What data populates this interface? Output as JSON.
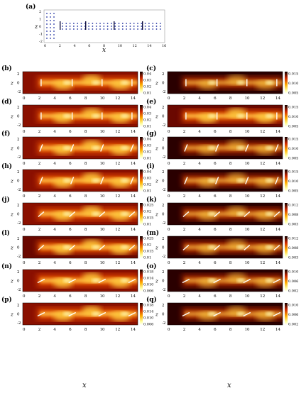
{
  "panel_a": {
    "label": "(a)",
    "xlabel": "x",
    "ylabel": "z",
    "x_ticks": [
      "0",
      "2",
      "4",
      "6",
      "8",
      "10",
      "12",
      "14",
      "16"
    ],
    "y_ticks": [
      "2",
      "1",
      "0",
      "-1",
      "-2"
    ]
  },
  "panels": [
    {
      "label": "(b)",
      "colorbar": [
        "0.04",
        "0.03",
        "0.02",
        "0.01"
      ],
      "scheme": "bright",
      "vanes": "vertical"
    },
    {
      "label": "(c)",
      "colorbar": [
        "0.015",
        "0.010",
        "0.005"
      ],
      "scheme": "dark",
      "vanes": "vertical"
    },
    {
      "label": "(d)",
      "colorbar": [
        "0.04",
        "0.03",
        "0.02",
        "0.01"
      ],
      "scheme": "bright",
      "vanes": "vertical"
    },
    {
      "label": "(e)",
      "colorbar": [
        "0.015",
        "0.010",
        "0.005"
      ],
      "scheme": "mid",
      "vanes": "vertical"
    },
    {
      "label": "(f)",
      "colorbar": [
        "0.04",
        "0.03",
        "0.02",
        "0.01"
      ],
      "scheme": "bright",
      "vanes": "tilt"
    },
    {
      "label": "(g)",
      "colorbar": [
        "0.015",
        "0.010",
        "0.005"
      ],
      "scheme": "dark",
      "vanes": "tilt"
    },
    {
      "label": "(h)",
      "colorbar": [
        "0.04",
        "0.03",
        "0.02",
        "0.01"
      ],
      "scheme": "bright",
      "vanes": "tilt"
    },
    {
      "label": "(i)",
      "colorbar": [
        "0.015",
        "0.010",
        "0.005"
      ],
      "scheme": "dark",
      "vanes": "tilt"
    },
    {
      "label": "(j)",
      "colorbar": [
        "0.025",
        "0.02",
        "0.015",
        "0.01"
      ],
      "scheme": "bright",
      "vanes": "diag"
    },
    {
      "label": "(k)",
      "colorbar": [
        "0.012",
        "0.008",
        "0.003"
      ],
      "scheme": "dark",
      "vanes": "diag"
    },
    {
      "label": "(l)",
      "colorbar": [
        "0.025",
        "0.02",
        "0.015",
        "0.01"
      ],
      "scheme": "mid",
      "vanes": "diag"
    },
    {
      "label": "(m)",
      "colorbar": [
        "0.012",
        "0.008",
        "0.003"
      ],
      "scheme": "dark",
      "vanes": "diag"
    },
    {
      "label": "(n)",
      "colorbar": [
        "0.018",
        "0.014",
        "0.010",
        "0.006"
      ],
      "scheme": "bright",
      "vanes": "flat"
    },
    {
      "label": "(o)",
      "colorbar": [
        "0.010",
        "0.006",
        "0.002"
      ],
      "scheme": "dark",
      "vanes": "flat"
    },
    {
      "label": "(p)",
      "colorbar": [
        "0.018",
        "0.014",
        "0.010",
        "0.006"
      ],
      "scheme": "bright",
      "vanes": "flat"
    },
    {
      "label": "(q)",
      "colorbar": [
        "0.010",
        "0.006",
        "0.002"
      ],
      "scheme": "dark",
      "vanes": "flat"
    }
  ],
  "common": {
    "x_ticks": [
      "0",
      "2",
      "4",
      "6",
      "8",
      "10",
      "12",
      "14"
    ],
    "y_ticks": [
      "2",
      "0",
      "-2"
    ],
    "xlabel": "x",
    "ylabel": "z"
  }
}
